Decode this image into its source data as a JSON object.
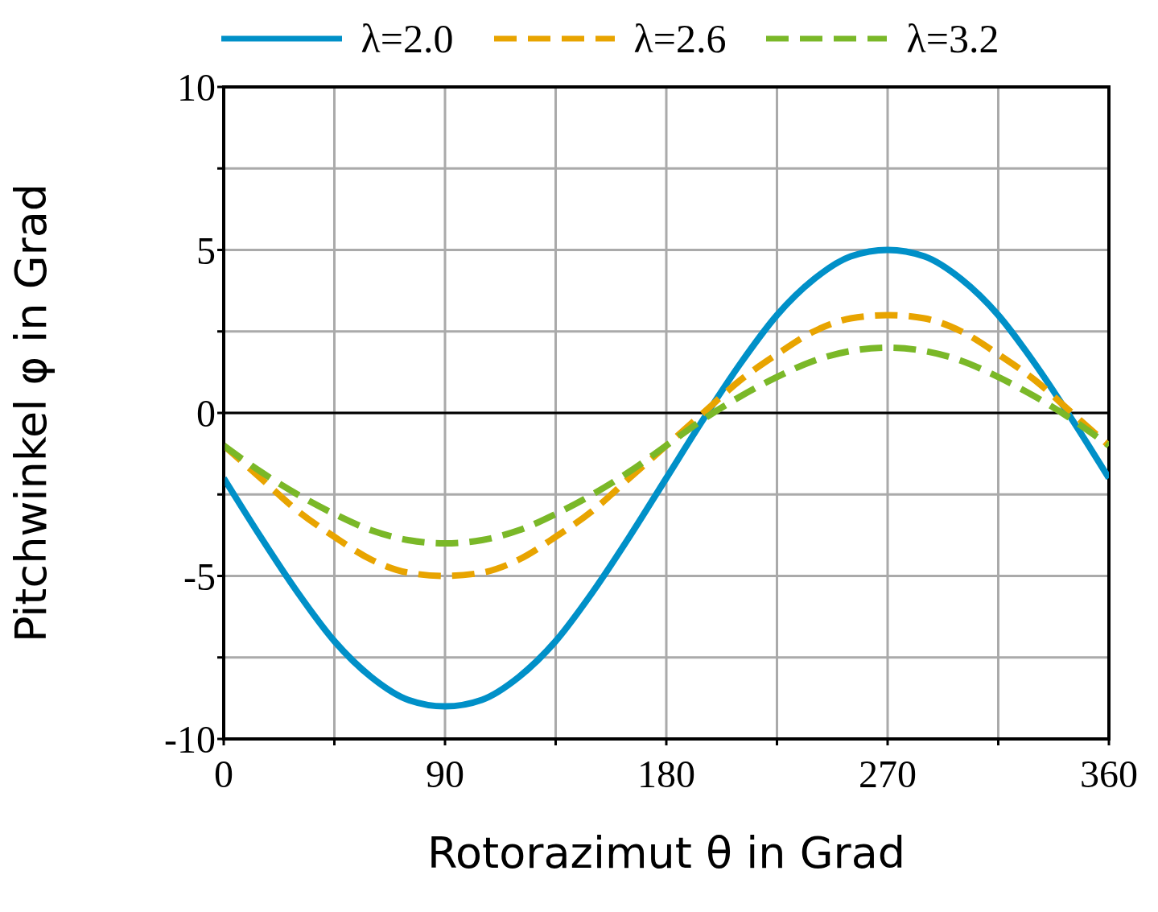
{
  "chart_data": {
    "type": "line",
    "xlabel": "Rotorazimut θ in Grad",
    "ylabel": "Pitchwinkel φ in Grad",
    "x": [
      0,
      15,
      30,
      45,
      60,
      75,
      90,
      105,
      120,
      135,
      150,
      165,
      180,
      195,
      210,
      225,
      240,
      255,
      270,
      285,
      300,
      315,
      330,
      345,
      360
    ],
    "series": [
      {
        "name": "λ=2.0",
        "color": "#0090c8",
        "line_style": "solid",
        "values": [
          -2,
          -3.8,
          -5.5,
          -7,
          -8.1,
          -8.8,
          -9,
          -8.8,
          -8.1,
          -7,
          -5.5,
          -3.8,
          -2,
          -0.2,
          1.5,
          3,
          4.1,
          4.8,
          5,
          4.8,
          4.1,
          3,
          1.5,
          -0.2,
          -2
        ]
      },
      {
        "name": "λ=2.6",
        "color": "#e8a400",
        "line_style": "dashed",
        "values": [
          -1,
          -2,
          -3,
          -3.8,
          -4.5,
          -4.9,
          -5,
          -4.9,
          -4.5,
          -3.8,
          -3,
          -2,
          -1,
          0,
          1,
          1.8,
          2.5,
          2.9,
          3,
          2.9,
          2.5,
          1.8,
          1,
          0,
          -1
        ]
      },
      {
        "name": "λ=3.2",
        "color": "#7ab828",
        "line_style": "dashed",
        "values": [
          -1,
          -1.8,
          -2.5,
          -3.1,
          -3.6,
          -3.9,
          -4,
          -3.9,
          -3.6,
          -3.1,
          -2.5,
          -1.8,
          -1,
          -0.2,
          0.5,
          1.1,
          1.6,
          1.9,
          2,
          1.9,
          1.6,
          1.1,
          0.5,
          -0.2,
          -1
        ]
      }
    ],
    "xlim": [
      0,
      360
    ],
    "xticks": [
      0,
      {
        "value": 45,
        "label": null
      },
      90,
      {
        "value": 135,
        "label": null
      },
      180,
      {
        "value": 225,
        "label": null
      },
      270,
      {
        "value": 315,
        "label": null
      },
      360
    ],
    "ylim": [
      -10,
      10
    ],
    "yticks": [
      -10,
      {
        "value": -7.5,
        "label": null
      },
      -5,
      {
        "value": -2.5,
        "label": null
      },
      0,
      {
        "value": 2.5,
        "label": null
      },
      5,
      {
        "value": 7.5,
        "label": null
      },
      10
    ],
    "ref_lines": [
      {
        "axis": "y",
        "value": 0,
        "color": "#000000"
      }
    ],
    "grid": true,
    "legend": "top",
    "marker": "none"
  }
}
